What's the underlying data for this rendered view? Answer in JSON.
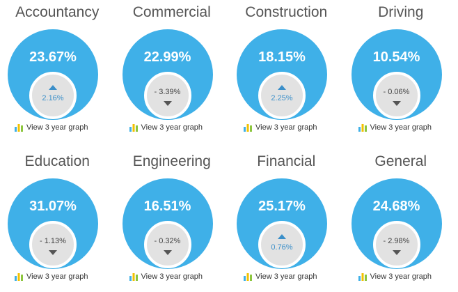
{
  "colors": {
    "circle": "#3fb0e8",
    "inner": "#e2e2e2",
    "up": "#3b8fc9",
    "down": "#555555",
    "bar_blue": "#3fb0e8",
    "bar_yellow": "#f2c200",
    "bar_green": "#8cc63f"
  },
  "link_icon": "bar-chart-icon",
  "sectors": [
    {
      "name": "Accountancy",
      "value": "23.67%",
      "change": "2.16%",
      "direction": "up",
      "link": "View 3 year graph"
    },
    {
      "name": "Commercial",
      "value": "22.99%",
      "change": "- 3.39%",
      "direction": "down",
      "link": "View 3 year graph"
    },
    {
      "name": "Construction",
      "value": "18.15%",
      "change": "2.25%",
      "direction": "up",
      "link": "View 3 year graph"
    },
    {
      "name": "Driving",
      "value": "10.54%",
      "change": "- 0.06%",
      "direction": "down",
      "link": "View 3 year graph"
    },
    {
      "name": "Education",
      "value": "31.07%",
      "change": "- 1.13%",
      "direction": "down",
      "link": "View 3 year graph"
    },
    {
      "name": "Engineering",
      "value": "16.51%",
      "change": "- 0.32%",
      "direction": "down",
      "link": "View 3 year graph"
    },
    {
      "name": "Financial",
      "value": "25.17%",
      "change": "0.76%",
      "direction": "up",
      "link": "View 3 year graph"
    },
    {
      "name": "General",
      "value": "24.68%",
      "change": "- 2.98%",
      "direction": "down",
      "link": "View 3 year graph"
    }
  ]
}
